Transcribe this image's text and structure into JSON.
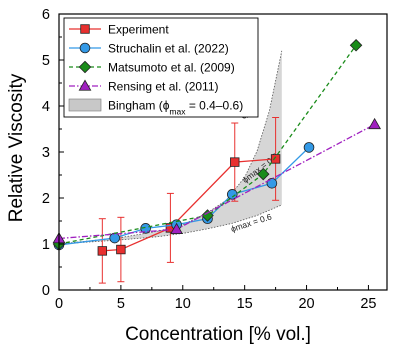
{
  "chart_data": {
    "type": "line",
    "xlabel": "Concentration [% vol.]",
    "ylabel": "Relative Viscosity",
    "xlim": [
      0,
      26.5
    ],
    "ylim": [
      0,
      6
    ],
    "xticks": [
      "0",
      "5",
      "10",
      "15",
      "20",
      "25"
    ],
    "yticks": [
      "0",
      "1",
      "2",
      "3",
      "4",
      "5",
      "6"
    ],
    "legend_position": "top-left",
    "grid": false,
    "series": [
      {
        "name": "Experiment",
        "color": "#e8302f",
        "marker": "square",
        "dash": "solid",
        "x": [
          3.5,
          5.0,
          9.0,
          14.2,
          17.5
        ],
        "y": [
          0.85,
          0.88,
          1.35,
          2.78,
          2.85
        ],
        "err": [
          0.7,
          0.7,
          0.75,
          0.85,
          0.9
        ]
      },
      {
        "name": "Struchalin et al. (2022)",
        "color": "#3399e6",
        "marker": "circle",
        "dash": "solid",
        "x": [
          0.0,
          4.5,
          7.0,
          9.5,
          12.0,
          14.0,
          17.2,
          20.2
        ],
        "y": [
          0.98,
          1.13,
          1.34,
          1.42,
          1.55,
          2.08,
          2.32,
          3.1
        ]
      },
      {
        "name": "Matsumoto et al. (2009)",
        "color": "#1a8c1a",
        "marker": "diamond",
        "dash": "dashed",
        "x": [
          0.0,
          12.0,
          16.5,
          24.0
        ],
        "y": [
          1.0,
          1.62,
          2.52,
          5.32
        ]
      },
      {
        "name": "Rensing et al. (2011)",
        "color": "#a020c0",
        "marker": "triangle",
        "dash": "dashdot",
        "x": [
          0.0,
          9.5,
          25.5
        ],
        "y": [
          1.12,
          1.32,
          3.6
        ]
      }
    ],
    "band": {
      "name": "Bingham (ϕmax = 0.4–0.6)",
      "label_prefix": "Bingham (ϕ",
      "label_sub": "max",
      "label_suffix": " = 0.4–0.6)",
      "color": "#c8c8c8",
      "upper": {
        "x": [
          0,
          5,
          8,
          10,
          12,
          13.5,
          15,
          16,
          17,
          18
        ],
        "y": [
          1.0,
          1.14,
          1.28,
          1.42,
          1.68,
          1.95,
          2.45,
          3.02,
          3.9,
          5.2
        ]
      },
      "lower": {
        "x": [
          0,
          5,
          8,
          10,
          12,
          14,
          16,
          18
        ],
        "y": [
          1.0,
          1.09,
          1.16,
          1.23,
          1.33,
          1.45,
          1.62,
          1.85
        ]
      },
      "annotations": [
        {
          "text": "ϕmax = 0.4",
          "x": 15.6,
          "y": 4.15,
          "rotate": -72
        },
        {
          "text": "ϕmax = 0.5",
          "x": 16.4,
          "y": 2.6,
          "rotate": -38
        },
        {
          "text": "ϕmax = 0.6",
          "x": 15.6,
          "y": 1.4,
          "rotate": -18
        }
      ]
    }
  }
}
